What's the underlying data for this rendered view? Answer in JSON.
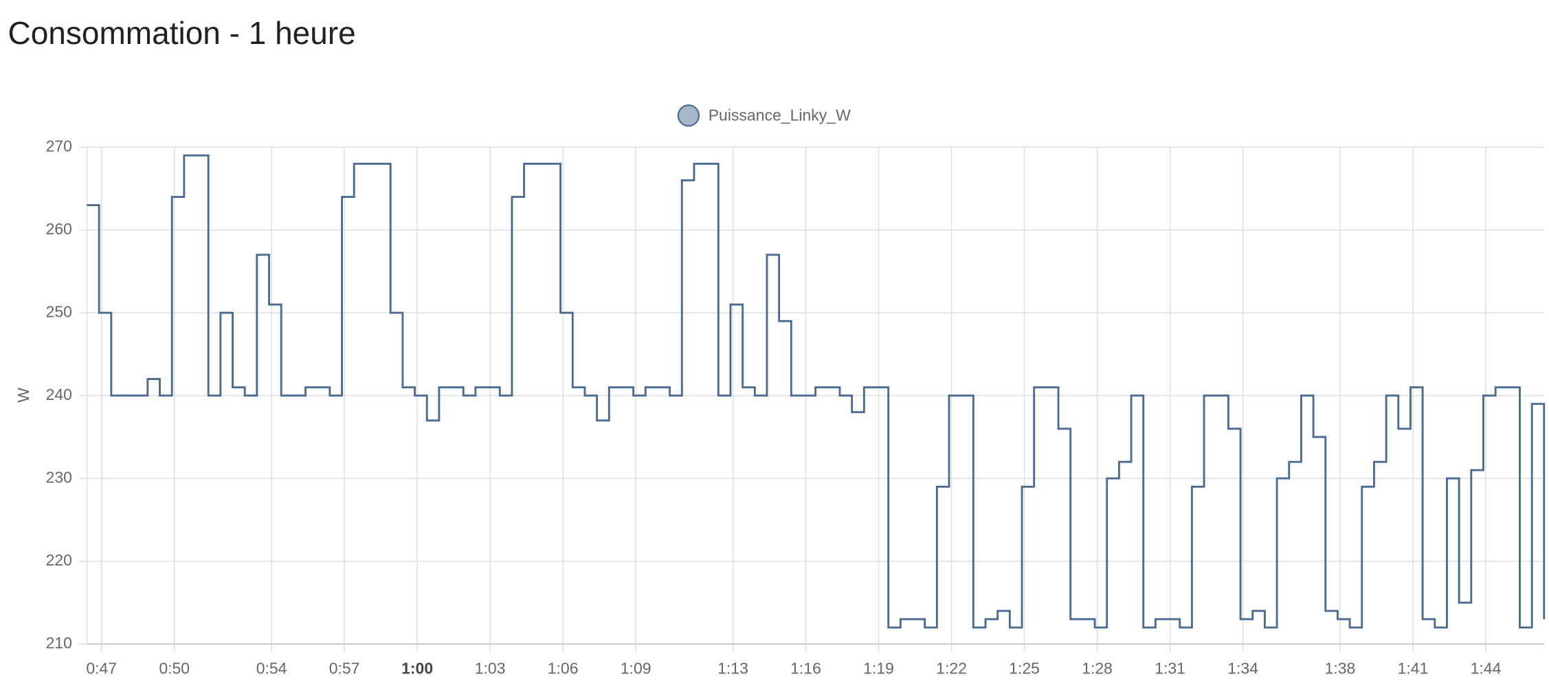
{
  "chart_data": {
    "type": "step-line",
    "title": "Consommation - 1 heure",
    "y_label": "W",
    "x": [
      46.4,
      46.9,
      47.4,
      47.9,
      48.4,
      48.9,
      49.4,
      49.9,
      50.4,
      50.9,
      51.4,
      51.9,
      52.4,
      52.9,
      53.4,
      53.9,
      54.4,
      54.9,
      55.4,
      55.9,
      56.4,
      56.9,
      57.4,
      57.9,
      58.4,
      58.9,
      59.4,
      59.9,
      60.4,
      60.9,
      61.4,
      61.9,
      62.4,
      62.9,
      63.4,
      63.9,
      64.4,
      64.9,
      65.4,
      65.9,
      66.4,
      66.9,
      67.4,
      67.9,
      68.4,
      68.9,
      69.4,
      69.9,
      70.4,
      70.9,
      71.4,
      71.9,
      72.4,
      72.9,
      73.4,
      73.9,
      74.4,
      74.9,
      75.4,
      75.9,
      76.4,
      76.9,
      77.4,
      77.9,
      78.4,
      78.9,
      79.4,
      79.9,
      80.4,
      80.9,
      81.4,
      81.9,
      82.4,
      82.9,
      83.4,
      83.9,
      84.4,
      84.9,
      85.4,
      85.9,
      86.4,
      86.9,
      87.4,
      87.9,
      88.4,
      88.9,
      89.4,
      89.9,
      90.4,
      90.9,
      91.4,
      91.9,
      92.4,
      92.9,
      93.4,
      93.9,
      94.4,
      94.9,
      95.4,
      95.9,
      96.4,
      96.9,
      97.4,
      97.9,
      98.4,
      98.9,
      99.4,
      99.9,
      100.4,
      100.9,
      101.4,
      101.9,
      102.4,
      102.9,
      103.4,
      103.9,
      104.4,
      104.9,
      105.4,
      105.9,
      106.4
    ],
    "series": [
      {
        "name": "Puissance_Linky_W",
        "color": "#4a6a92",
        "fill": "#a7b6c8",
        "values": [
          263,
          250,
          240,
          240,
          240,
          242,
          240,
          264,
          269,
          269,
          240,
          250,
          241,
          240,
          257,
          251,
          240,
          240,
          241,
          241,
          240,
          264,
          268,
          268,
          268,
          250,
          241,
          240,
          237,
          241,
          241,
          240,
          241,
          241,
          240,
          264,
          268,
          268,
          268,
          250,
          241,
          240,
          237,
          241,
          241,
          240,
          241,
          241,
          240,
          266,
          268,
          268,
          240,
          251,
          241,
          240,
          257,
          249,
          240,
          240,
          241,
          241,
          240,
          238,
          241,
          241,
          212,
          213,
          213,
          212,
          229,
          240,
          240,
          212,
          213,
          214,
          212,
          229,
          241,
          241,
          236,
          213,
          213,
          212,
          230,
          232,
          240,
          212,
          213,
          213,
          212,
          229,
          240,
          240,
          236,
          213,
          214,
          212,
          230,
          232,
          240,
          235,
          214,
          213,
          212,
          229,
          232,
          240,
          236,
          241,
          213,
          212,
          230,
          215,
          231,
          240,
          241,
          241,
          212,
          239,
          213
        ]
      }
    ],
    "xlim": [
      46.4,
      106.4
    ],
    "xticks": [
      {
        "value": 47,
        "label": "0:47"
      },
      {
        "value": 50,
        "label": "0:50"
      },
      {
        "value": 54,
        "label": "0:54"
      },
      {
        "value": 57,
        "label": "0:57"
      },
      {
        "value": 60,
        "label": "1:00"
      },
      {
        "value": 63,
        "label": "1:03"
      },
      {
        "value": 66,
        "label": "1:06"
      },
      {
        "value": 69,
        "label": "1:09"
      },
      {
        "value": 73,
        "label": "1:13"
      },
      {
        "value": 76,
        "label": "1:16"
      },
      {
        "value": 79,
        "label": "1:19"
      },
      {
        "value": 82,
        "label": "1:22"
      },
      {
        "value": 85,
        "label": "1:25"
      },
      {
        "value": 88,
        "label": "1:28"
      },
      {
        "value": 91,
        "label": "1:31"
      },
      {
        "value": 94,
        "label": "1:34"
      },
      {
        "value": 98,
        "label": "1:38"
      },
      {
        "value": 101,
        "label": "1:41"
      },
      {
        "value": 104,
        "label": "1:44"
      }
    ],
    "ylim": [
      210,
      270
    ],
    "yticks": [
      210,
      220,
      230,
      240,
      250,
      260,
      270
    ],
    "grid": true,
    "legend": "top"
  }
}
